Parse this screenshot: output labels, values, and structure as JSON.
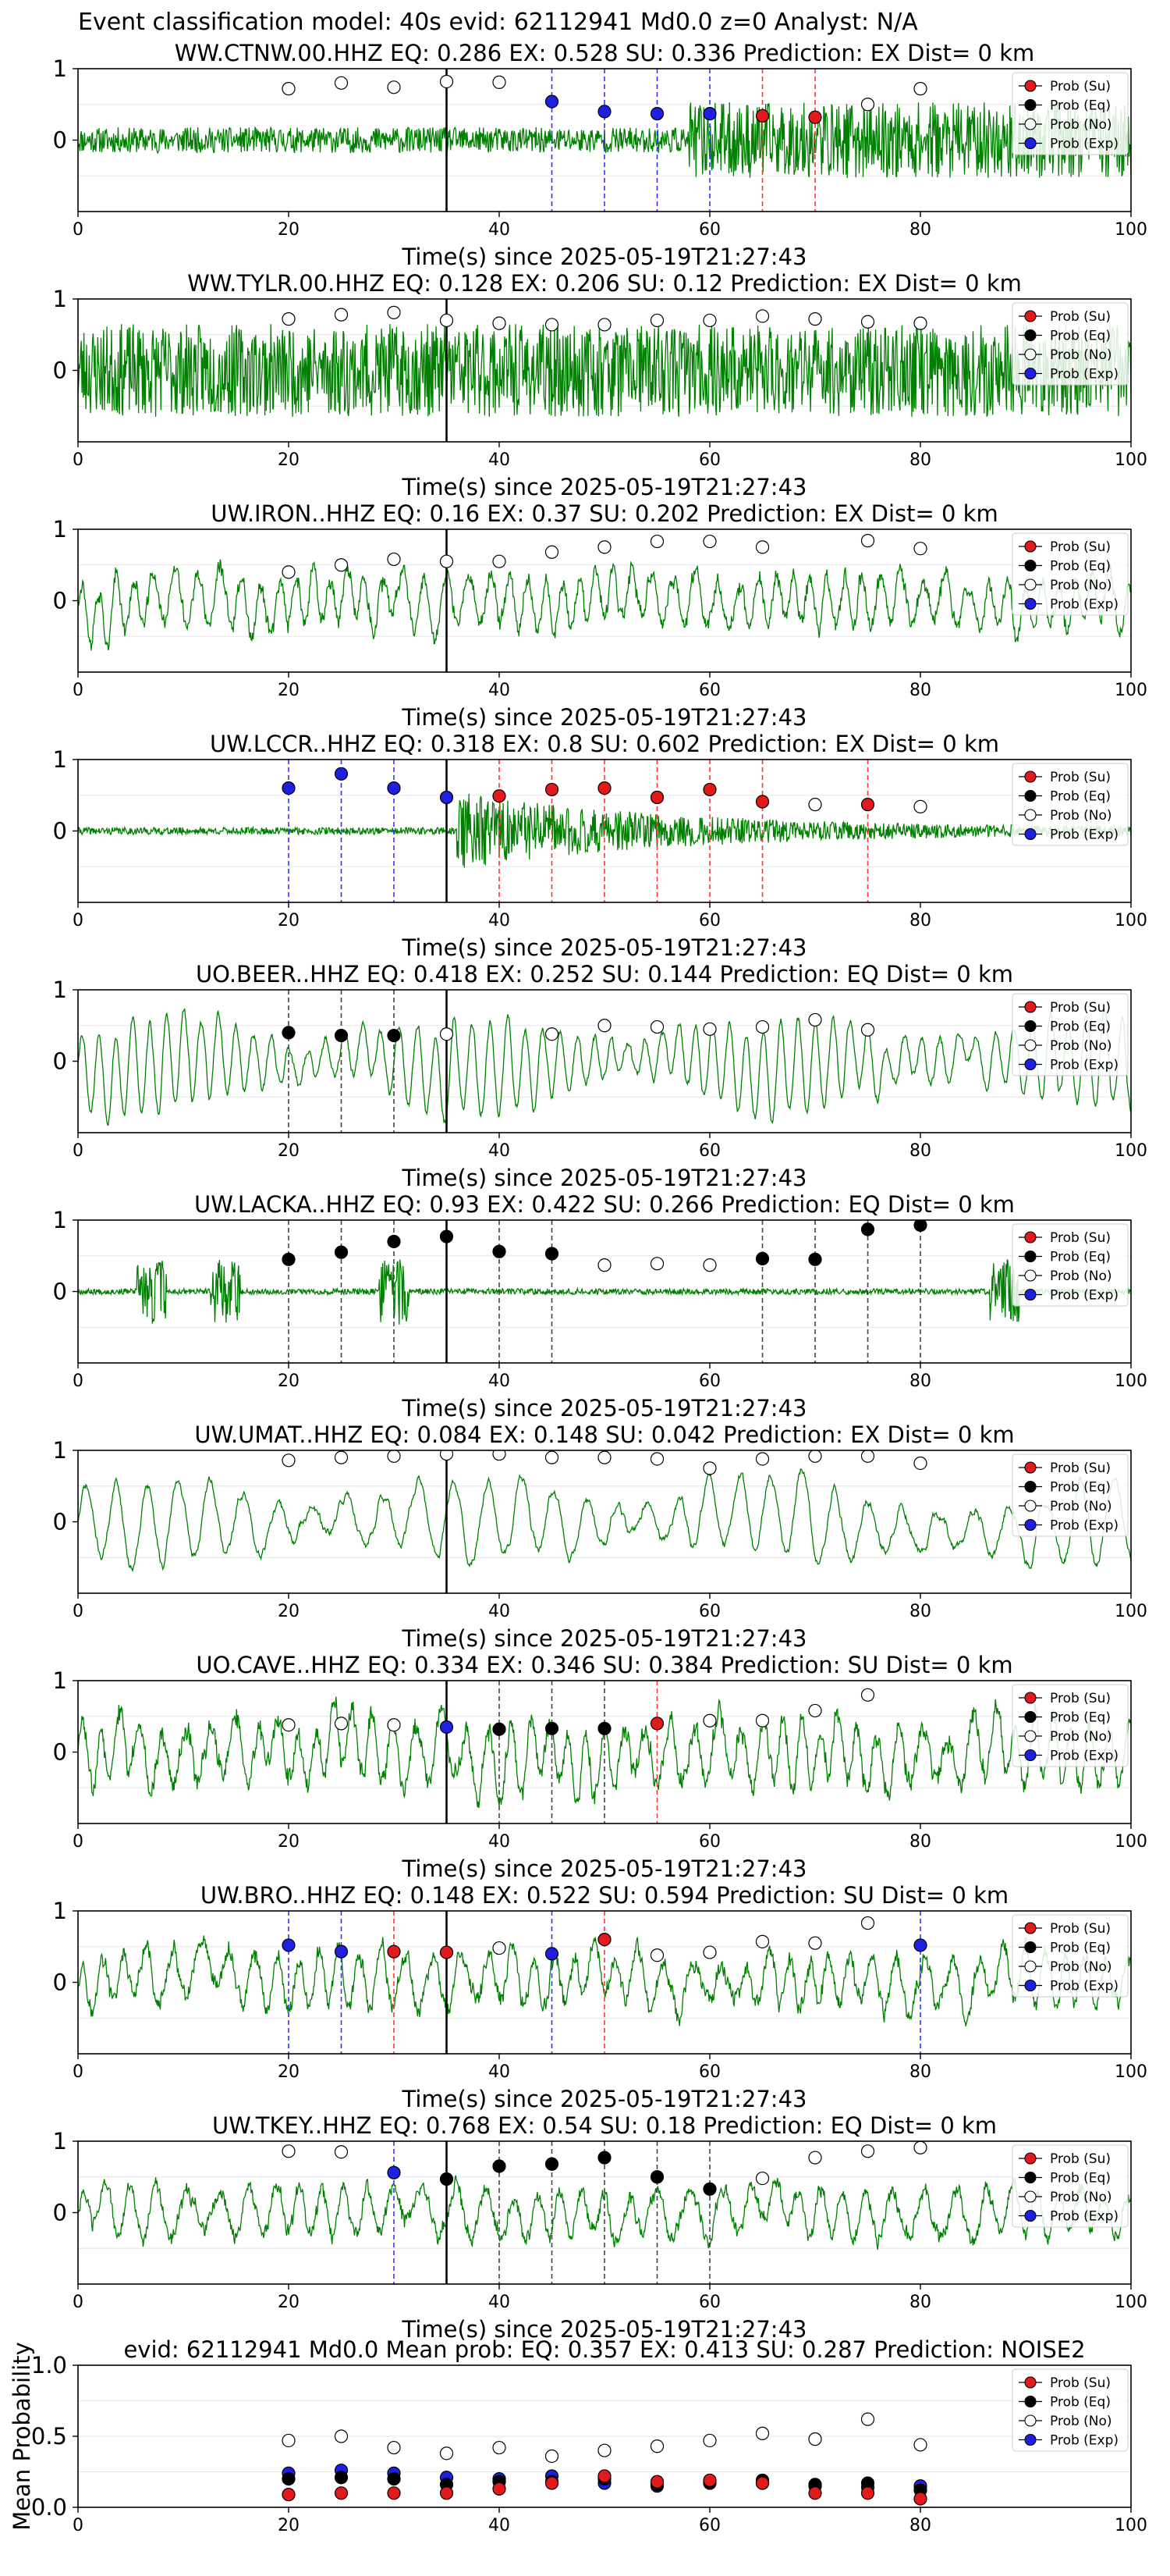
{
  "figure": {
    "suptitle": "Event classification model: 40s evid: 62112941 Md0.0 z=0 Analyst: N/A"
  },
  "colors": {
    "waveform": "#008000",
    "su": "#e31a1c",
    "eq": "#000000",
    "exp": "#1f1fe0",
    "no_fill": "#ffffff",
    "vline_su": "#ff3333",
    "vline_eq": "#444444",
    "vline_exp": "#3333ff",
    "origin_line": "#000000"
  },
  "legend_labels": [
    "Prob (Su)",
    "Prob (Eq)",
    "Prob (No)",
    "Prob (Exp)"
  ],
  "chart_data": [
    {
      "type": "line",
      "title": "WW.CTNW.00.HHZ   EQ: 0.286  EX: 0.528  SU: 0.336   Prediction: EX    Dist= 0 km",
      "xlabel": "Time(s) since 2025-05-19T21:27:43",
      "xlim": [
        0,
        100
      ],
      "ylim": [
        -1,
        1
      ],
      "xticks": [
        0,
        20,
        40,
        60,
        80,
        100
      ],
      "yticks": [
        1,
        0
      ],
      "origin_time": 35,
      "waveform": {
        "amp": 0.18,
        "style": "noise",
        "burst_start": 58,
        "burst_amp": 0.35,
        "seed": 11
      },
      "points": [
        {
          "x": 20,
          "y": 0.72,
          "class": "no"
        },
        {
          "x": 25,
          "y": 0.8,
          "class": "no"
        },
        {
          "x": 30,
          "y": 0.74,
          "class": "no"
        },
        {
          "x": 35,
          "y": 0.82,
          "class": "no"
        },
        {
          "x": 40,
          "y": 0.81,
          "class": "no"
        },
        {
          "x": 45,
          "y": 0.54,
          "class": "exp"
        },
        {
          "x": 50,
          "y": 0.4,
          "class": "exp"
        },
        {
          "x": 55,
          "y": 0.37,
          "class": "exp"
        },
        {
          "x": 60,
          "y": 0.37,
          "class": "exp"
        },
        {
          "x": 65,
          "y": 0.34,
          "class": "su"
        },
        {
          "x": 70,
          "y": 0.32,
          "class": "su"
        },
        {
          "x": 75,
          "y": 0.5,
          "class": "no"
        },
        {
          "x": 80,
          "y": 0.72,
          "class": "no"
        }
      ]
    },
    {
      "type": "line",
      "title": "WW.TYLR.00.HHZ   EQ: 0.128  EX: 0.206  SU: 0.12   Prediction: EX    Dist= 0 km",
      "xlabel": "Time(s) since 2025-05-19T21:27:43",
      "xlim": [
        0,
        100
      ],
      "ylim": [
        -1,
        1
      ],
      "xticks": [
        0,
        20,
        40,
        60,
        80,
        100
      ],
      "yticks": [
        1,
        0
      ],
      "origin_time": 35,
      "waveform": {
        "amp": 0.65,
        "style": "noise",
        "seed": 23
      },
      "points": [
        {
          "x": 20,
          "y": 0.72,
          "class": "no"
        },
        {
          "x": 25,
          "y": 0.78,
          "class": "no"
        },
        {
          "x": 30,
          "y": 0.81,
          "class": "no"
        },
        {
          "x": 35,
          "y": 0.7,
          "class": "no"
        },
        {
          "x": 40,
          "y": 0.66,
          "class": "no"
        },
        {
          "x": 45,
          "y": 0.64,
          "class": "no"
        },
        {
          "x": 50,
          "y": 0.64,
          "class": "no"
        },
        {
          "x": 55,
          "y": 0.7,
          "class": "no"
        },
        {
          "x": 60,
          "y": 0.7,
          "class": "no"
        },
        {
          "x": 65,
          "y": 0.76,
          "class": "no"
        },
        {
          "x": 70,
          "y": 0.72,
          "class": "no"
        },
        {
          "x": 75,
          "y": 0.68,
          "class": "no"
        },
        {
          "x": 80,
          "y": 0.66,
          "class": "no"
        }
      ]
    },
    {
      "type": "line",
      "title": "UW.IRON..HHZ   EQ: 0.16  EX: 0.37  SU: 0.202   Prediction: EX    Dist= 0 km",
      "xlabel": "Time(s) since 2025-05-19T21:27:43",
      "xlim": [
        0,
        100
      ],
      "ylim": [
        -1,
        1
      ],
      "xticks": [
        0,
        20,
        40,
        60,
        80,
        100
      ],
      "yticks": [
        1,
        0
      ],
      "origin_time": 35,
      "waveform": {
        "amp": 0.45,
        "style": "wave",
        "freq": 0.55,
        "seed": 37
      },
      "points": [
        {
          "x": 20,
          "y": 0.4,
          "class": "no"
        },
        {
          "x": 25,
          "y": 0.5,
          "class": "no"
        },
        {
          "x": 30,
          "y": 0.58,
          "class": "no"
        },
        {
          "x": 35,
          "y": 0.55,
          "class": "no"
        },
        {
          "x": 40,
          "y": 0.55,
          "class": "no"
        },
        {
          "x": 45,
          "y": 0.68,
          "class": "no"
        },
        {
          "x": 50,
          "y": 0.75,
          "class": "no"
        },
        {
          "x": 55,
          "y": 0.83,
          "class": "no"
        },
        {
          "x": 60,
          "y": 0.83,
          "class": "no"
        },
        {
          "x": 65,
          "y": 0.75,
          "class": "no"
        },
        {
          "x": 75,
          "y": 0.84,
          "class": "no"
        },
        {
          "x": 80,
          "y": 0.73,
          "class": "no"
        }
      ]
    },
    {
      "type": "line",
      "title": "UW.LCCR..HHZ   EQ: 0.318  EX: 0.8  SU: 0.602   Prediction: EX    Dist= 0 km",
      "xlabel": "Time(s) since 2025-05-19T21:27:43",
      "xlim": [
        0,
        100
      ],
      "ylim": [
        -1,
        1
      ],
      "xticks": [
        0,
        20,
        40,
        60,
        80,
        100
      ],
      "yticks": [
        1,
        0
      ],
      "origin_time": 35,
      "waveform": {
        "amp": 0.05,
        "style": "noise",
        "burst_start": 36,
        "burst_amp": 0.5,
        "burst_decay": 0.05,
        "seed": 41
      },
      "points": [
        {
          "x": 20,
          "y": 0.6,
          "class": "exp"
        },
        {
          "x": 25,
          "y": 0.8,
          "class": "exp"
        },
        {
          "x": 30,
          "y": 0.6,
          "class": "exp"
        },
        {
          "x": 35,
          "y": 0.47,
          "class": "exp"
        },
        {
          "x": 40,
          "y": 0.49,
          "class": "su"
        },
        {
          "x": 45,
          "y": 0.58,
          "class": "su"
        },
        {
          "x": 50,
          "y": 0.6,
          "class": "su"
        },
        {
          "x": 55,
          "y": 0.47,
          "class": "su"
        },
        {
          "x": 60,
          "y": 0.58,
          "class": "su"
        },
        {
          "x": 65,
          "y": 0.41,
          "class": "su"
        },
        {
          "x": 70,
          "y": 0.37,
          "class": "no"
        },
        {
          "x": 75,
          "y": 0.37,
          "class": "su"
        },
        {
          "x": 80,
          "y": 0.34,
          "class": "no"
        }
      ]
    },
    {
      "type": "line",
      "title": "UO.BEER..HHZ   EQ: 0.418  EX: 0.252  SU: 0.144   Prediction: EQ    Dist= 0 km",
      "xlabel": "Time(s) since 2025-05-19T21:27:43",
      "xlim": [
        0,
        100
      ],
      "ylim": [
        -1,
        1
      ],
      "xticks": [
        0,
        20,
        40,
        60,
        80,
        100
      ],
      "yticks": [
        1,
        0
      ],
      "origin_time": 35,
      "waveform": {
        "amp": 0.65,
        "style": "smooth",
        "freq": 0.6,
        "seed": 53
      },
      "points": [
        {
          "x": 20,
          "y": 0.4,
          "class": "eq"
        },
        {
          "x": 25,
          "y": 0.36,
          "class": "eq"
        },
        {
          "x": 30,
          "y": 0.36,
          "class": "eq"
        },
        {
          "x": 35,
          "y": 0.38,
          "class": "no"
        },
        {
          "x": 45,
          "y": 0.38,
          "class": "no"
        },
        {
          "x": 50,
          "y": 0.5,
          "class": "no"
        },
        {
          "x": 55,
          "y": 0.48,
          "class": "no"
        },
        {
          "x": 60,
          "y": 0.45,
          "class": "no"
        },
        {
          "x": 65,
          "y": 0.48,
          "class": "no"
        },
        {
          "x": 70,
          "y": 0.58,
          "class": "no"
        },
        {
          "x": 75,
          "y": 0.44,
          "class": "no"
        }
      ]
    },
    {
      "type": "line",
      "title": "UW.LACKA..HHZ   EQ: 0.93  EX: 0.422  SU: 0.266   Prediction: EQ    Dist= 0 km",
      "xlabel": "Time(s) since 2025-05-19T21:27:43",
      "xlim": [
        0,
        100
      ],
      "ylim": [
        -1,
        1
      ],
      "xticks": [
        0,
        20,
        40,
        60,
        80,
        100
      ],
      "yticks": [
        1,
        0
      ],
      "origin_time": 35,
      "waveform": {
        "amp": 0.04,
        "style": "noise",
        "spikes": [
          7,
          14,
          30,
          88
        ],
        "spike_amp": 0.45,
        "seed": 67
      },
      "points": [
        {
          "x": 20,
          "y": 0.45,
          "class": "eq"
        },
        {
          "x": 25,
          "y": 0.55,
          "class": "eq"
        },
        {
          "x": 30,
          "y": 0.7,
          "class": "eq"
        },
        {
          "x": 35,
          "y": 0.77,
          "class": "eq"
        },
        {
          "x": 40,
          "y": 0.56,
          "class": "eq"
        },
        {
          "x": 45,
          "y": 0.53,
          "class": "eq"
        },
        {
          "x": 50,
          "y": 0.37,
          "class": "no"
        },
        {
          "x": 55,
          "y": 0.39,
          "class": "no"
        },
        {
          "x": 60,
          "y": 0.37,
          "class": "no"
        },
        {
          "x": 65,
          "y": 0.46,
          "class": "eq"
        },
        {
          "x": 70,
          "y": 0.45,
          "class": "eq"
        },
        {
          "x": 75,
          "y": 0.87,
          "class": "eq"
        },
        {
          "x": 80,
          "y": 0.93,
          "class": "eq"
        }
      ]
    },
    {
      "type": "line",
      "title": "UW.UMAT..HHZ   EQ: 0.084  EX: 0.148  SU: 0.042   Prediction: EX    Dist= 0 km",
      "xlabel": "Time(s) since 2025-05-19T21:27:43",
      "xlim": [
        0,
        100
      ],
      "ylim": [
        -1,
        1
      ],
      "xticks": [
        0,
        20,
        40,
        60,
        80,
        100
      ],
      "yticks": [
        1,
        0
      ],
      "origin_time": 35,
      "waveform": {
        "amp": 0.6,
        "style": "smooth",
        "freq": 0.32,
        "seed": 71
      },
      "points": [
        {
          "x": 20,
          "y": 0.86,
          "class": "no"
        },
        {
          "x": 25,
          "y": 0.9,
          "class": "no"
        },
        {
          "x": 30,
          "y": 0.92,
          "class": "no"
        },
        {
          "x": 35,
          "y": 0.95,
          "class": "no"
        },
        {
          "x": 40,
          "y": 0.95,
          "class": "no"
        },
        {
          "x": 45,
          "y": 0.9,
          "class": "no"
        },
        {
          "x": 50,
          "y": 0.9,
          "class": "no"
        },
        {
          "x": 55,
          "y": 0.88,
          "class": "no"
        },
        {
          "x": 60,
          "y": 0.75,
          "class": "no"
        },
        {
          "x": 65,
          "y": 0.88,
          "class": "no"
        },
        {
          "x": 70,
          "y": 0.92,
          "class": "no"
        },
        {
          "x": 75,
          "y": 0.92,
          "class": "no"
        },
        {
          "x": 80,
          "y": 0.82,
          "class": "no"
        }
      ]
    },
    {
      "type": "line",
      "title": "UO.CAVE..HHZ   EQ: 0.334  EX: 0.346  SU: 0.384   Prediction: SU    Dist= 0 km",
      "xlabel": "Time(s) since 2025-05-19T21:27:43",
      "xlim": [
        0,
        100
      ],
      "ylim": [
        -1,
        1
      ],
      "xticks": [
        0,
        20,
        40,
        60,
        80,
        100
      ],
      "yticks": [
        1,
        0
      ],
      "origin_time": 35,
      "waveform": {
        "amp": 0.55,
        "style": "wave",
        "freq": 0.5,
        "seed": 83
      },
      "points": [
        {
          "x": 20,
          "y": 0.38,
          "class": "no"
        },
        {
          "x": 25,
          "y": 0.4,
          "class": "no"
        },
        {
          "x": 30,
          "y": 0.38,
          "class": "no"
        },
        {
          "x": 35,
          "y": 0.35,
          "class": "exp"
        },
        {
          "x": 40,
          "y": 0.32,
          "class": "eq"
        },
        {
          "x": 45,
          "y": 0.33,
          "class": "eq"
        },
        {
          "x": 50,
          "y": 0.33,
          "class": "eq"
        },
        {
          "x": 55,
          "y": 0.4,
          "class": "su"
        },
        {
          "x": 60,
          "y": 0.44,
          "class": "no"
        },
        {
          "x": 65,
          "y": 0.44,
          "class": "no"
        },
        {
          "x": 70,
          "y": 0.58,
          "class": "no"
        },
        {
          "x": 75,
          "y": 0.8,
          "class": "no"
        }
      ]
    },
    {
      "type": "line",
      "title": "UW.BRO..HHZ   EQ: 0.148  EX: 0.522  SU: 0.594   Prediction: SU    Dist= 0 km",
      "xlabel": "Time(s) since 2025-05-19T21:27:43",
      "xlim": [
        0,
        100
      ],
      "ylim": [
        -1,
        1
      ],
      "xticks": [
        0,
        20,
        40,
        60,
        80,
        100
      ],
      "yticks": [
        1,
        0
      ],
      "origin_time": 35,
      "waveform": {
        "amp": 0.45,
        "style": "wave",
        "freq": 0.45,
        "seed": 97
      },
      "points": [
        {
          "x": 20,
          "y": 0.52,
          "class": "exp"
        },
        {
          "x": 25,
          "y": 0.43,
          "class": "exp"
        },
        {
          "x": 30,
          "y": 0.43,
          "class": "su"
        },
        {
          "x": 35,
          "y": 0.42,
          "class": "su"
        },
        {
          "x": 40,
          "y": 0.48,
          "class": "no"
        },
        {
          "x": 45,
          "y": 0.4,
          "class": "exp"
        },
        {
          "x": 50,
          "y": 0.6,
          "class": "su"
        },
        {
          "x": 55,
          "y": 0.38,
          "class": "no"
        },
        {
          "x": 60,
          "y": 0.42,
          "class": "no"
        },
        {
          "x": 65,
          "y": 0.57,
          "class": "no"
        },
        {
          "x": 70,
          "y": 0.55,
          "class": "no"
        },
        {
          "x": 75,
          "y": 0.83,
          "class": "no"
        },
        {
          "x": 80,
          "y": 0.52,
          "class": "exp"
        }
      ]
    },
    {
      "type": "line",
      "title": "UW.TKEY..HHZ   EQ: 0.768  EX: 0.54  SU: 0.18   Prediction: EQ    Dist= 0 km",
      "xlabel": "Time(s) since 2025-05-19T21:27:43",
      "xlim": [
        0,
        100
      ],
      "ylim": [
        -1,
        1
      ],
      "xticks": [
        0,
        20,
        40,
        60,
        80,
        100
      ],
      "yticks": [
        1,
        0
      ],
      "origin_time": 35,
      "waveform": {
        "amp": 0.4,
        "style": "wave",
        "freq": 0.4,
        "seed": 103
      },
      "points": [
        {
          "x": 20,
          "y": 0.86,
          "class": "no"
        },
        {
          "x": 25,
          "y": 0.85,
          "class": "no"
        },
        {
          "x": 30,
          "y": 0.56,
          "class": "exp"
        },
        {
          "x": 35,
          "y": 0.47,
          "class": "eq"
        },
        {
          "x": 40,
          "y": 0.65,
          "class": "eq"
        },
        {
          "x": 45,
          "y": 0.68,
          "class": "eq"
        },
        {
          "x": 50,
          "y": 0.77,
          "class": "eq"
        },
        {
          "x": 55,
          "y": 0.5,
          "class": "eq"
        },
        {
          "x": 60,
          "y": 0.33,
          "class": "eq"
        },
        {
          "x": 65,
          "y": 0.48,
          "class": "no"
        },
        {
          "x": 70,
          "y": 0.77,
          "class": "no"
        },
        {
          "x": 75,
          "y": 0.86,
          "class": "no"
        },
        {
          "x": 80,
          "y": 0.91,
          "class": "no"
        }
      ]
    },
    {
      "type": "scatter",
      "title": "evid: 62112941  Md0.0   Mean prob:   EQ: 0.357  EX: 0.413  SU: 0.287   Prediction: NOISE2",
      "ylabel": "Mean Probability",
      "xlim": [
        0,
        100
      ],
      "ylim": [
        0,
        1
      ],
      "xticks": [
        0,
        20,
        40,
        60,
        80,
        100
      ],
      "yticks": [
        1.0,
        0.5,
        0.0
      ],
      "ytick_labels": [
        "1.0",
        "0.5",
        "0.0"
      ],
      "grid": true,
      "x": [
        20,
        25,
        30,
        35,
        40,
        45,
        50,
        55,
        60,
        65,
        70,
        75,
        80
      ],
      "series": [
        {
          "class": "no",
          "name": "Prob (No)",
          "values": [
            0.47,
            0.5,
            0.42,
            0.38,
            0.42,
            0.36,
            0.4,
            0.43,
            0.47,
            0.52,
            0.48,
            0.62,
            0.44
          ]
        },
        {
          "class": "exp",
          "name": "Prob (Exp)",
          "values": [
            0.24,
            0.26,
            0.24,
            0.21,
            0.2,
            0.22,
            0.17,
            0.15,
            0.17,
            0.17,
            0.15,
            0.14,
            0.15
          ]
        },
        {
          "class": "eq",
          "name": "Prob (Eq)",
          "values": [
            0.2,
            0.21,
            0.2,
            0.16,
            0.18,
            0.18,
            0.2,
            0.16,
            0.18,
            0.19,
            0.16,
            0.17,
            0.12
          ]
        },
        {
          "class": "su",
          "name": "Prob (Su)",
          "values": [
            0.09,
            0.1,
            0.1,
            0.1,
            0.13,
            0.17,
            0.22,
            0.18,
            0.19,
            0.17,
            0.1,
            0.1,
            0.06
          ]
        }
      ]
    }
  ]
}
